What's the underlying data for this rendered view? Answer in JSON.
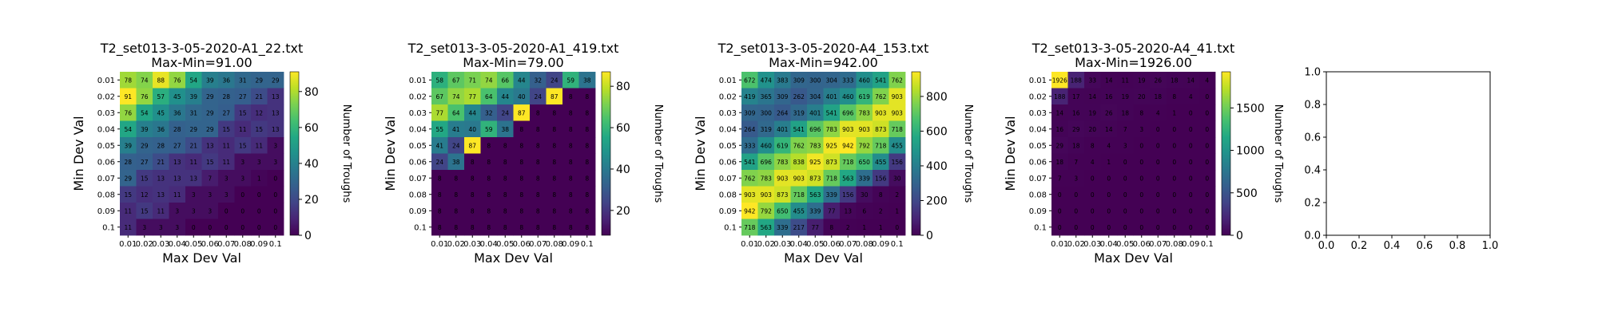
{
  "chart_data": [
    {
      "type": "heatmap",
      "title": "T2_set013-3-05-2020-A1_22.txt",
      "subtitle": "Max-Min=91.00",
      "xlabel": "Max Dev Val",
      "ylabel": "Min Dev Val",
      "x_ticks": [
        "0.01",
        "0.02",
        "0.03",
        "0.04",
        "0.05",
        "0.06",
        "0.07",
        "0.08",
        "0.09",
        "0.1"
      ],
      "y_ticks": [
        "0.01",
        "0.02",
        "0.03",
        "0.04",
        "0.05",
        "0.06",
        "0.07",
        "0.08",
        "0.09",
        "0.1"
      ],
      "colorbar": {
        "label": "Number of Troughs",
        "min": 0,
        "max": 91,
        "ticks": [
          0,
          20,
          40,
          60,
          80
        ]
      },
      "values": [
        [
          78,
          74,
          88,
          76,
          54,
          39,
          36,
          31,
          29,
          29
        ],
        [
          91,
          76,
          57,
          45,
          39,
          29,
          28,
          27,
          21,
          13
        ],
        [
          76,
          54,
          45,
          36,
          31,
          29,
          27,
          15,
          12,
          13
        ],
        [
          54,
          39,
          36,
          28,
          29,
          29,
          15,
          11,
          15,
          13
        ],
        [
          39,
          29,
          28,
          27,
          21,
          13,
          11,
          15,
          11,
          3
        ],
        [
          28,
          27,
          21,
          13,
          11,
          15,
          11,
          3,
          3,
          3
        ],
        [
          29,
          15,
          13,
          13,
          13,
          7,
          3,
          3,
          1,
          0
        ],
        [
          15,
          12,
          13,
          11,
          3,
          3,
          3,
          0,
          0,
          0
        ],
        [
          11,
          15,
          11,
          3,
          3,
          3,
          0,
          0,
          0,
          0
        ],
        [
          11,
          3,
          3,
          3,
          0,
          0,
          0,
          0,
          0,
          0
        ]
      ]
    },
    {
      "type": "heatmap",
      "title": "T2_set013-3-05-2020-A1_419.txt",
      "subtitle": "Max-Min=79.00",
      "xlabel": "Max Dev Val",
      "ylabel": "Min Dev Val",
      "x_ticks": [
        "0.01",
        "0.02",
        "0.03",
        "0.04",
        "0.05",
        "0.06",
        "0.07",
        "0.08",
        "0.09",
        "0.1"
      ],
      "y_ticks": [
        "0.01",
        "0.02",
        "0.03",
        "0.04",
        "0.05",
        "0.06",
        "0.07",
        "0.08",
        "0.09",
        "0.1"
      ],
      "colorbar": {
        "label": "Number of Troughs",
        "min": 8,
        "max": 87,
        "ticks": [
          20,
          40,
          60,
          80
        ]
      },
      "values": [
        [
          58,
          67,
          71,
          74,
          66,
          44,
          32,
          24,
          59,
          38
        ],
        [
          67,
          74,
          77,
          64,
          44,
          40,
          24,
          87,
          8,
          8
        ],
        [
          77,
          64,
          44,
          32,
          24,
          87,
          8,
          8,
          8,
          8
        ],
        [
          55,
          41,
          40,
          59,
          38,
          8,
          8,
          8,
          8,
          8
        ],
        [
          41,
          24,
          87,
          8,
          8,
          8,
          8,
          8,
          8,
          8
        ],
        [
          24,
          38,
          8,
          8,
          8,
          8,
          8,
          8,
          8,
          8
        ],
        [
          8,
          8,
          8,
          8,
          8,
          8,
          8,
          8,
          8,
          8
        ],
        [
          8,
          8,
          8,
          8,
          8,
          8,
          8,
          8,
          8,
          8
        ],
        [
          8,
          8,
          8,
          8,
          8,
          8,
          8,
          8,
          8,
          8
        ],
        [
          8,
          8,
          8,
          8,
          8,
          8,
          8,
          8,
          8,
          8
        ]
      ]
    },
    {
      "type": "heatmap",
      "title": "T2_set013-3-05-2020-A4_153.txt",
      "subtitle": "Max-Min=942.00",
      "xlabel": "Max Dev Val",
      "ylabel": "Min Dev Val",
      "x_ticks": [
        "0.01",
        "0.02",
        "0.03",
        "0.04",
        "0.05",
        "0.06",
        "0.07",
        "0.08",
        "0.09",
        "0.1"
      ],
      "y_ticks": [
        "0.01",
        "0.02",
        "0.03",
        "0.04",
        "0.05",
        "0.06",
        "0.07",
        "0.08",
        "0.09",
        "0.1"
      ],
      "colorbar": {
        "label": "Number of Troughs",
        "min": 0,
        "max": 942,
        "ticks": [
          0,
          200,
          400,
          600,
          800
        ]
      },
      "values": [
        [
          672,
          474,
          383,
          309,
          300,
          304,
          333,
          460,
          541,
          762
        ],
        [
          419,
          365,
          309,
          262,
          304,
          401,
          460,
          619,
          762,
          903
        ],
        [
          309,
          300,
          264,
          319,
          401,
          541,
          696,
          783,
          903,
          903
        ],
        [
          264,
          319,
          401,
          541,
          696,
          783,
          903,
          903,
          873,
          718
        ],
        [
          333,
          460,
          619,
          762,
          783,
          925,
          942,
          792,
          718,
          455
        ],
        [
          541,
          696,
          783,
          838,
          925,
          873,
          718,
          650,
          455,
          156
        ],
        [
          762,
          783,
          903,
          903,
          873,
          718,
          563,
          339,
          156,
          30
        ],
        [
          903,
          903,
          873,
          718,
          563,
          339,
          156,
          30,
          8,
          2
        ],
        [
          942,
          792,
          650,
          455,
          339,
          77,
          13,
          6,
          2,
          1
        ],
        [
          718,
          563,
          339,
          217,
          77,
          8,
          2,
          1,
          1,
          0
        ]
      ]
    },
    {
      "type": "heatmap",
      "title": "T2_set013-3-05-2020-A4_41.txt",
      "subtitle": "Max-Min=1926.00",
      "xlabel": "Max Dev Val",
      "ylabel": "Min Dev Val",
      "x_ticks": [
        "0.01",
        "0.02",
        "0.03",
        "0.04",
        "0.05",
        "0.06",
        "0.07",
        "0.08",
        "0.09",
        "0.1"
      ],
      "y_ticks": [
        "0.01",
        "0.02",
        "0.03",
        "0.04",
        "0.05",
        "0.06",
        "0.07",
        "0.08",
        "0.09",
        "0.1"
      ],
      "colorbar": {
        "label": "Number of Troughs",
        "min": 0,
        "max": 1926,
        "ticks": [
          0,
          500,
          1000,
          1500
        ]
      },
      "values": [
        [
          1926,
          188,
          33,
          14,
          11,
          19,
          26,
          18,
          14,
          4
        ],
        [
          188,
          17,
          14,
          16,
          19,
          20,
          18,
          8,
          4,
          0
        ],
        [
          14,
          16,
          19,
          26,
          18,
          8,
          4,
          1,
          0,
          0
        ],
        [
          16,
          29,
          20,
          14,
          7,
          3,
          0,
          0,
          0,
          0
        ],
        [
          29,
          18,
          8,
          4,
          3,
          0,
          0,
          0,
          0,
          0
        ],
        [
          18,
          7,
          4,
          1,
          0,
          0,
          0,
          0,
          0,
          0
        ],
        [
          7,
          3,
          0,
          0,
          0,
          0,
          0,
          0,
          0,
          0
        ],
        [
          0,
          0,
          0,
          0,
          0,
          0,
          0,
          0,
          0,
          0
        ],
        [
          0,
          0,
          0,
          0,
          0,
          0,
          0,
          0,
          0,
          0
        ],
        [
          0,
          0,
          0,
          0,
          0,
          0,
          0,
          0,
          0,
          0
        ]
      ]
    },
    {
      "type": "empty",
      "x_ticks": [
        "0.0",
        "0.2",
        "0.4",
        "0.6",
        "0.8",
        "1.0"
      ],
      "y_ticks": [
        "0.0",
        "0.2",
        "0.4",
        "0.6",
        "0.8",
        "1.0"
      ]
    }
  ]
}
